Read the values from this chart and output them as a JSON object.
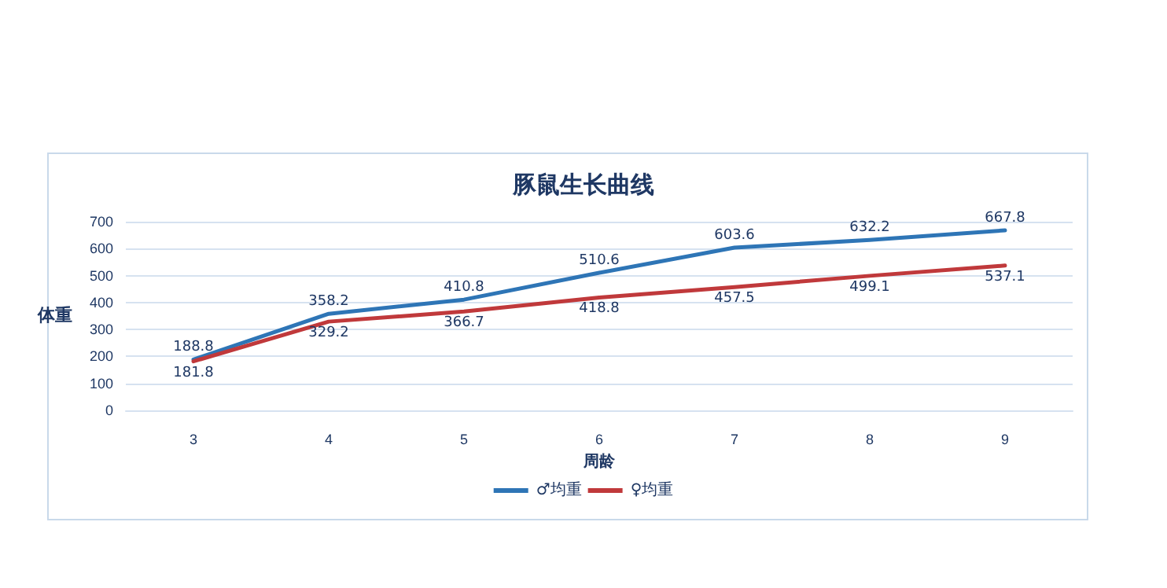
{
  "chart_data": {
    "type": "line",
    "title": "豚鼠生长曲线",
    "xlabel": "周龄",
    "ylabel": "体重",
    "categories": [
      "3",
      "4",
      "5",
      "6",
      "7",
      "8",
      "9"
    ],
    "series": [
      {
        "name": "♂均重",
        "color": "#2e75b6",
        "values": [
          188.8,
          358.2,
          410.8,
          510.6,
          603.6,
          632.2,
          667.8
        ]
      },
      {
        "name": "♀均重",
        "color": "#c0393b",
        "values": [
          181.8,
          329.2,
          366.7,
          418.8,
          457.5,
          499.1,
          537.1
        ]
      }
    ],
    "ylim": [
      0,
      700
    ],
    "yticks": [
      0,
      100,
      200,
      300,
      400,
      500,
      600,
      700
    ],
    "grid": "y",
    "legend": "bottom",
    "data_labels": true,
    "marker": "none",
    "line_style": "solid"
  }
}
